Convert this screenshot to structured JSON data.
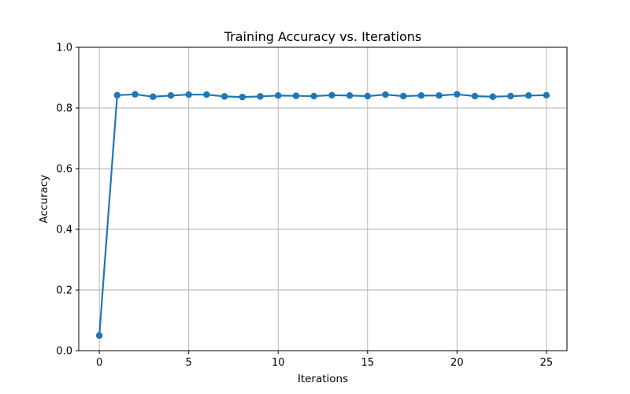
{
  "chart_data": {
    "type": "line",
    "title": "Training Accuracy vs. Iterations",
    "xlabel": "Iterations",
    "ylabel": "Accuracy",
    "xlim": [
      -1.15,
      26.15
    ],
    "ylim": [
      0.0,
      1.0
    ],
    "xticks": [
      0,
      5,
      10,
      15,
      20,
      25
    ],
    "yticks": [
      0.0,
      0.2,
      0.4,
      0.6,
      0.8,
      1.0
    ],
    "xtick_labels": [
      "0",
      "5",
      "10",
      "15",
      "20",
      "25"
    ],
    "ytick_labels": [
      "0.0",
      "0.2",
      "0.4",
      "0.6",
      "0.8",
      "1.0"
    ],
    "grid": true,
    "legend": "none",
    "series": [
      {
        "color": "#1f77b4",
        "marker": "circle",
        "x": [
          0,
          1,
          2,
          3,
          4,
          5,
          6,
          7,
          8,
          9,
          10,
          11,
          12,
          13,
          14,
          15,
          16,
          17,
          18,
          19,
          20,
          21,
          22,
          23,
          24,
          25
        ],
        "y": [
          0.05,
          0.842,
          0.845,
          0.837,
          0.841,
          0.844,
          0.844,
          0.838,
          0.836,
          0.838,
          0.841,
          0.84,
          0.839,
          0.842,
          0.841,
          0.839,
          0.844,
          0.839,
          0.841,
          0.841,
          0.845,
          0.839,
          0.837,
          0.839,
          0.841,
          0.842
        ]
      }
    ]
  }
}
